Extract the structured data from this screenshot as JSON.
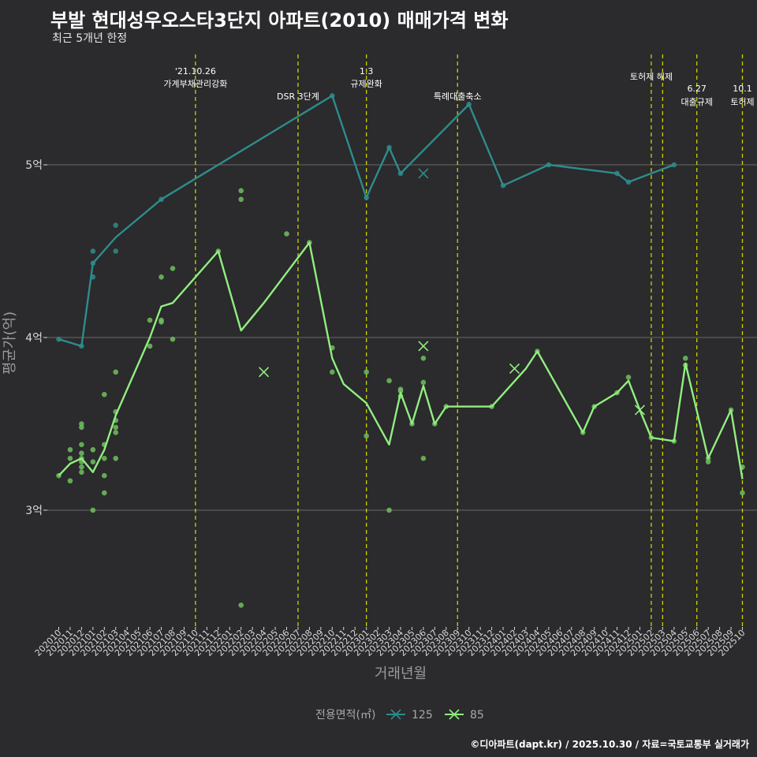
{
  "title": "부발 현대성우오스타3단지 아파트(2010) 매매가격 변화",
  "subtitle": "최근 5개년 한정",
  "caption": "©디아파트(dapt.kr) / 2025.10.30 / 자료=국토교통부 실거래가",
  "colors": {
    "background": "#2b2a2c",
    "series_125": "#2e8c8c",
    "series_85": "#90ee80",
    "points_85": "#6fbf5f",
    "event_line": "#c8d400",
    "gridline": "#6a6a6a"
  },
  "chart_data": {
    "type": "line",
    "xlabel": "거래년월",
    "ylabel": "평균가(억)",
    "ylim": [
      2.3,
      5.75
    ],
    "yticks": [
      {
        "value": 3,
        "label": "3억"
      },
      {
        "value": 4,
        "label": "4억"
      },
      {
        "value": 5,
        "label": "5억"
      }
    ],
    "categories": [
      "202010",
      "202011",
      "202012",
      "202101",
      "202102",
      "202103",
      "202104",
      "202105",
      "202106",
      "202107",
      "202108",
      "202109",
      "202110",
      "202111",
      "202112",
      "202201",
      "202202",
      "202203",
      "202204",
      "202205",
      "202206",
      "202207",
      "202208",
      "202209",
      "202210",
      "202211",
      "202212",
      "202301",
      "202302",
      "202303",
      "202304",
      "202305",
      "202306",
      "202307",
      "202308",
      "202309",
      "202310",
      "202311",
      "202312",
      "202401",
      "202402",
      "202403",
      "202404",
      "202405",
      "202406",
      "202407",
      "202408",
      "202409",
      "202410",
      "202411",
      "202412",
      "202501",
      "202502",
      "202503",
      "202504",
      "202505",
      "202506",
      "202507",
      "202508",
      "202509",
      "202510"
    ],
    "legend_title": "전용면적(㎡)",
    "series": [
      {
        "name": "125",
        "color_key": "series_125",
        "line": [
          [
            0,
            3.99
          ],
          [
            2,
            3.95
          ],
          [
            3,
            4.43
          ],
          [
            5,
            4.58
          ],
          [
            9,
            4.8
          ],
          [
            24,
            5.4
          ],
          [
            27,
            4.81
          ],
          [
            29,
            5.1
          ],
          [
            30,
            4.95
          ],
          [
            36,
            5.35
          ],
          [
            39,
            4.88
          ],
          [
            43,
            5.0
          ],
          [
            49,
            4.95
          ],
          [
            50,
            4.9
          ],
          [
            54,
            5.0
          ]
        ],
        "points": [
          [
            0,
            3.99
          ],
          [
            2,
            3.95
          ],
          [
            3,
            4.43
          ],
          [
            3,
            4.5
          ],
          [
            3,
            4.35
          ],
          [
            5,
            4.65
          ],
          [
            5,
            4.5
          ],
          [
            9,
            4.8
          ],
          [
            24,
            5.4
          ],
          [
            27,
            4.81
          ],
          [
            29,
            5.1
          ],
          [
            30,
            4.95
          ],
          [
            36,
            5.35
          ],
          [
            39,
            4.88
          ],
          [
            43,
            5.0
          ],
          [
            49,
            4.95
          ],
          [
            50,
            4.9
          ],
          [
            54,
            5.0
          ]
        ],
        "crosses": [
          [
            32,
            4.95
          ]
        ]
      },
      {
        "name": "85",
        "color_key": "series_85",
        "line": [
          [
            0,
            3.2
          ],
          [
            1,
            3.27
          ],
          [
            2,
            3.3
          ],
          [
            3,
            3.22
          ],
          [
            4,
            3.35
          ],
          [
            5,
            3.55
          ],
          [
            8,
            4.0
          ],
          [
            9,
            4.18
          ],
          [
            10,
            4.2
          ],
          [
            14,
            4.5
          ],
          [
            16,
            4.04
          ],
          [
            18,
            4.2
          ],
          [
            22,
            4.55
          ],
          [
            24,
            3.88
          ],
          [
            25,
            3.73
          ],
          [
            27,
            3.62
          ],
          [
            29,
            3.38
          ],
          [
            30,
            3.68
          ],
          [
            31,
            3.5
          ],
          [
            32,
            3.72
          ],
          [
            33,
            3.5
          ],
          [
            34,
            3.6
          ],
          [
            38,
            3.6
          ],
          [
            41,
            3.82
          ],
          [
            42,
            3.92
          ],
          [
            46,
            3.45
          ],
          [
            47,
            3.6
          ],
          [
            49,
            3.68
          ],
          [
            50,
            3.75
          ],
          [
            51,
            3.58
          ],
          [
            52,
            3.42
          ],
          [
            54,
            3.4
          ],
          [
            55,
            3.85
          ],
          [
            57,
            3.3
          ],
          [
            59,
            3.58
          ],
          [
            60,
            3.18
          ]
        ],
        "points": [
          [
            0,
            3.2
          ],
          [
            1,
            3.17
          ],
          [
            1,
            3.3
          ],
          [
            1,
            3.35
          ],
          [
            2,
            3.22
          ],
          [
            2,
            3.25
          ],
          [
            2,
            3.28
          ],
          [
            2,
            3.3
          ],
          [
            2,
            3.33
          ],
          [
            2,
            3.38
          ],
          [
            2,
            3.48
          ],
          [
            2,
            3.5
          ],
          [
            3,
            3.0
          ],
          [
            3,
            3.28
          ],
          [
            3,
            3.35
          ],
          [
            4,
            3.1
          ],
          [
            4,
            3.2
          ],
          [
            4,
            3.3
          ],
          [
            4,
            3.38
          ],
          [
            4,
            3.67
          ],
          [
            5,
            3.3
          ],
          [
            5,
            3.45
          ],
          [
            5,
            3.48
          ],
          [
            5,
            3.52
          ],
          [
            5,
            3.57
          ],
          [
            5,
            3.8
          ],
          [
            8,
            3.95
          ],
          [
            8,
            4.1
          ],
          [
            9,
            4.1
          ],
          [
            9,
            4.09
          ],
          [
            9,
            4.35
          ],
          [
            10,
            4.4
          ],
          [
            10,
            3.99
          ],
          [
            14,
            4.5
          ],
          [
            16,
            4.85
          ],
          [
            16,
            4.8
          ],
          [
            16,
            2.45
          ],
          [
            20,
            4.6
          ],
          [
            22,
            4.55
          ],
          [
            24,
            3.94
          ],
          [
            24,
            3.8
          ],
          [
            27,
            3.8
          ],
          [
            27,
            3.43
          ],
          [
            29,
            3.75
          ],
          [
            29,
            3.0
          ],
          [
            30,
            3.7
          ],
          [
            30,
            3.69
          ],
          [
            30,
            3.66
          ],
          [
            31,
            3.5
          ],
          [
            32,
            3.88
          ],
          [
            32,
            3.74
          ],
          [
            32,
            3.3
          ],
          [
            33,
            3.5
          ],
          [
            34,
            3.6
          ],
          [
            38,
            3.6
          ],
          [
            42,
            3.92
          ],
          [
            46,
            3.45
          ],
          [
            47,
            3.6
          ],
          [
            49,
            3.68
          ],
          [
            50,
            3.77
          ],
          [
            52,
            3.42
          ],
          [
            54,
            3.4
          ],
          [
            55,
            3.88
          ],
          [
            55,
            3.84
          ],
          [
            57,
            3.3
          ],
          [
            57,
            3.28
          ],
          [
            59,
            3.58
          ],
          [
            60,
            3.25
          ],
          [
            60,
            3.1
          ]
        ],
        "crosses": [
          [
            18,
            3.8
          ],
          [
            32,
            3.95
          ],
          [
            40,
            3.82
          ],
          [
            51,
            3.58
          ]
        ]
      }
    ],
    "annotations": [
      {
        "x": 12.0,
        "lines": [
          "'21.10.26",
          "가계부채관리강화"
        ],
        "level": "top"
      },
      {
        "x": 21.0,
        "lines": [
          "DSR 3단계"
        ],
        "level": "low"
      },
      {
        "x": 27.0,
        "lines": [
          "1.3",
          "규제완화"
        ],
        "level": "top"
      },
      {
        "x": 35.0,
        "lines": [
          "특례대출축소"
        ],
        "level": "low"
      },
      {
        "x": 52.0,
        "lines": [
          "토허제 해제"
        ],
        "level": "mid"
      },
      {
        "x": 53.0,
        "lines": [],
        "level": "none"
      },
      {
        "x": 56.0,
        "lines": [
          "6.27",
          "대출규제"
        ],
        "level": "mid2"
      },
      {
        "x": 60.0,
        "lines": [
          "10.1",
          "토허제"
        ],
        "level": "mid2"
      }
    ]
  }
}
